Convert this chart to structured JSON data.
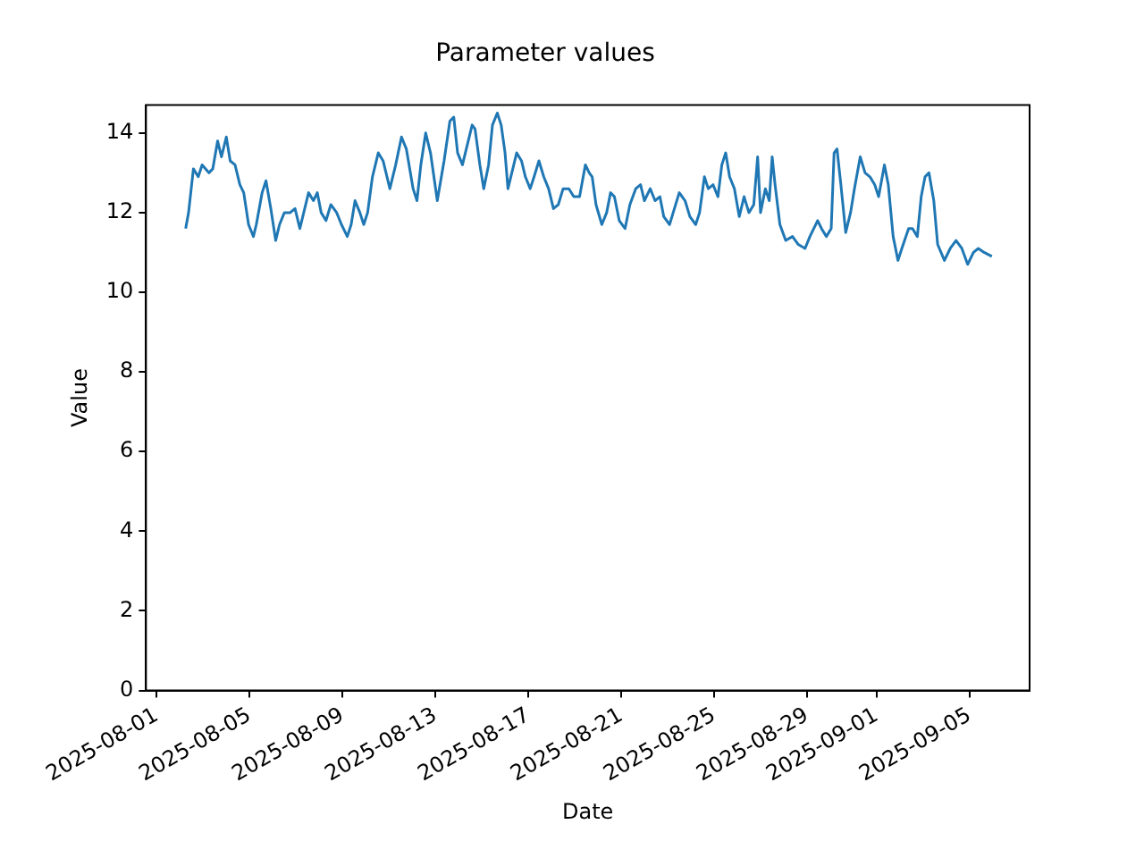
{
  "chart_data": {
    "type": "line",
    "title": "Parameter values",
    "xlabel": "Date",
    "ylabel": "Value",
    "x": [
      "2025-08-02T06:00",
      "2025-08-02T09:00",
      "2025-08-02T14:00",
      "2025-08-02T19:00",
      "2025-08-02T23:00",
      "2025-08-03T06:00",
      "2025-08-03T10:00",
      "2025-08-03T15:00",
      "2025-08-03T19:00",
      "2025-08-04T00:00",
      "2025-08-04T04:00",
      "2025-08-04T09:00",
      "2025-08-04T14:00",
      "2025-08-04T18:00",
      "2025-08-04T23:00",
      "2025-08-05T04:00",
      "2025-08-05T07:00",
      "2025-08-05T13:00",
      "2025-08-05T17:00",
      "2025-08-05T22:00",
      "2025-08-06T03:00",
      "2025-08-06T07:00",
      "2025-08-06T12:00",
      "2025-08-06T18:00",
      "2025-08-06T23:00",
      "2025-08-07T04:00",
      "2025-08-07T08:00",
      "2025-08-07T13:00",
      "2025-08-07T18:00",
      "2025-08-07T22:00",
      "2025-08-08T02:00",
      "2025-08-08T07:00",
      "2025-08-08T12:00",
      "2025-08-08T18:00",
      "2025-08-08T23:00",
      "2025-08-09T05:00",
      "2025-08-09T09:00",
      "2025-08-09T13:00",
      "2025-08-09T18:00",
      "2025-08-09T22:00",
      "2025-08-10T02:00",
      "2025-08-10T07:00",
      "2025-08-10T13:00",
      "2025-08-10T18:00",
      "2025-08-11T01:00",
      "2025-08-11T07:00",
      "2025-08-11T13:00",
      "2025-08-11T18:00",
      "2025-08-12T01:00",
      "2025-08-12T05:00",
      "2025-08-12T09:00",
      "2025-08-12T14:00",
      "2025-08-12T19:00",
      "2025-08-13T02:00",
      "2025-08-13T09:00",
      "2025-08-13T15:00",
      "2025-08-13T19:00",
      "2025-08-13T23:00",
      "2025-08-14T04:00",
      "2025-08-14T09:00",
      "2025-08-14T14:00",
      "2025-08-14T17:00",
      "2025-08-14T22:00",
      "2025-08-15T02:00",
      "2025-08-15T07:00",
      "2025-08-15T11:00",
      "2025-08-15T16:00",
      "2025-08-15T20:00",
      "2025-08-16T00:00",
      "2025-08-16T03:00",
      "2025-08-16T07:00",
      "2025-08-16T12:00",
      "2025-08-16T17:00",
      "2025-08-16T21:00",
      "2025-08-17T02:00",
      "2025-08-17T06:00",
      "2025-08-17T11:00",
      "2025-08-17T16:00",
      "2025-08-17T21:00",
      "2025-08-18T02:00",
      "2025-08-18T07:00",
      "2025-08-18T12:00",
      "2025-08-18T18:00",
      "2025-08-18T23:00",
      "2025-08-19T05:00",
      "2025-08-19T11:00",
      "2025-08-19T15:00",
      "2025-08-19T18:00",
      "2025-08-19T22:00",
      "2025-08-20T04:00",
      "2025-08-20T09:00",
      "2025-08-20T13:00",
      "2025-08-20T17:00",
      "2025-08-20T22:00",
      "2025-08-21T04:00",
      "2025-08-21T09:00",
      "2025-08-21T15:00",
      "2025-08-21T20:00",
      "2025-08-22T00:00",
      "2025-08-22T06:00",
      "2025-08-22T11:00",
      "2025-08-22T16:00",
      "2025-08-22T20:00",
      "2025-08-23T02:00",
      "2025-08-23T07:00",
      "2025-08-23T12:00",
      "2025-08-23T18:00",
      "2025-08-23T23:00",
      "2025-08-24T05:00",
      "2025-08-24T09:00",
      "2025-08-24T14:00",
      "2025-08-24T18:00",
      "2025-08-24T23:00",
      "2025-08-25T04:00",
      "2025-08-25T08:00",
      "2025-08-25T12:00",
      "2025-08-25T16:00",
      "2025-08-25T21:00",
      "2025-08-26T02:00",
      "2025-08-26T07:00",
      "2025-08-26T12:00",
      "2025-08-26T17:00",
      "2025-08-26T21:00",
      "2025-08-27T00:00",
      "2025-08-27T05:00",
      "2025-08-27T09:00",
      "2025-08-27T12:00",
      "2025-08-27T15:00",
      "2025-08-27T20:00",
      "2025-08-28T02:00",
      "2025-08-28T09:00",
      "2025-08-28T15:00",
      "2025-08-28T22:00",
      "2025-08-29T03:00",
      "2025-08-29T11:00",
      "2025-08-29T15:00",
      "2025-08-29T20:00",
      "2025-08-30T01:00",
      "2025-08-30T04:00",
      "2025-08-30T07:00",
      "2025-08-30T11:00",
      "2025-08-30T16:00",
      "2025-08-30T21:00",
      "2025-08-31T01:00",
      "2025-08-31T07:00",
      "2025-08-31T12:00",
      "2025-08-31T17:00",
      "2025-08-31T22:00",
      "2025-09-01T02:00",
      "2025-09-01T08:00",
      "2025-09-01T12:00",
      "2025-09-01T17:00",
      "2025-09-01T22:00",
      "2025-09-02T02:00",
      "2025-09-02T09:00",
      "2025-09-02T13:00",
      "2025-09-02T18:00",
      "2025-09-02T22:00",
      "2025-09-03T02:00",
      "2025-09-03T06:00",
      "2025-09-03T11:00",
      "2025-09-03T15:00",
      "2025-09-03T22:00",
      "2025-09-04T04:00",
      "2025-09-04T10:00",
      "2025-09-04T16:00",
      "2025-09-04T22:00",
      "2025-09-05T04:00",
      "2025-09-05T09:00",
      "2025-09-05T15:00",
      "2025-09-05T23:00"
    ],
    "series": [
      {
        "color": "#1f77b4",
        "values": [
          11.6,
          12.0,
          13.1,
          12.9,
          13.2,
          13.0,
          13.1,
          13.8,
          13.4,
          13.9,
          13.3,
          13.2,
          12.7,
          12.5,
          11.7,
          11.4,
          11.7,
          12.5,
          12.8,
          12.1,
          11.3,
          11.7,
          12.0,
          12.0,
          12.1,
          11.6,
          12.0,
          12.5,
          12.3,
          12.5,
          12.0,
          11.8,
          12.2,
          12.0,
          11.7,
          11.4,
          11.7,
          12.3,
          12.0,
          11.7,
          12.0,
          12.9,
          13.5,
          13.3,
          12.6,
          13.2,
          13.9,
          13.6,
          12.6,
          12.3,
          13.2,
          14.0,
          13.5,
          12.3,
          13.3,
          14.3,
          14.4,
          13.5,
          13.2,
          13.7,
          14.2,
          14.1,
          13.2,
          12.6,
          13.2,
          14.2,
          14.5,
          14.2,
          13.5,
          12.6,
          13.0,
          13.5,
          13.3,
          12.9,
          12.6,
          12.9,
          13.3,
          12.9,
          12.6,
          12.1,
          12.2,
          12.6,
          12.6,
          12.4,
          12.4,
          13.2,
          13.0,
          12.9,
          12.2,
          11.7,
          12.0,
          12.5,
          12.4,
          11.8,
          11.6,
          12.2,
          12.6,
          12.7,
          12.3,
          12.6,
          12.3,
          12.4,
          11.9,
          11.7,
          12.1,
          12.5,
          12.3,
          11.9,
          11.7,
          12.0,
          12.9,
          12.6,
          12.7,
          12.4,
          13.2,
          13.5,
          12.9,
          12.6,
          11.9,
          12.4,
          12.0,
          12.2,
          13.4,
          12.0,
          12.6,
          12.3,
          13.4,
          12.7,
          11.7,
          11.3,
          11.4,
          11.2,
          11.1,
          11.4,
          11.8,
          11.6,
          11.4,
          11.6,
          13.5,
          13.6,
          12.7,
          11.5,
          12.0,
          12.6,
          13.4,
          13.0,
          12.9,
          12.7,
          12.4,
          13.2,
          12.7,
          11.4,
          10.8,
          11.1,
          11.6,
          11.6,
          11.4,
          12.4,
          12.9,
          13.0,
          12.3,
          11.2,
          10.8,
          11.1,
          11.3,
          11.1,
          10.7,
          11.0,
          11.1,
          11.0,
          10.9
        ]
      }
    ],
    "xlim": [
      "2025-07-31T13:00",
      "2025-09-07T14:00"
    ],
    "xticks": [
      "2025-08-01",
      "2025-08-05",
      "2025-08-09",
      "2025-08-13",
      "2025-08-17",
      "2025-08-21",
      "2025-08-25",
      "2025-08-29",
      "2025-09-01",
      "2025-09-05"
    ],
    "ylim": [
      0,
      14.7
    ],
    "yticks": [
      0,
      2,
      4,
      6,
      8,
      10,
      12,
      14
    ],
    "grid": false,
    "legend": false,
    "marker": "none",
    "line_style": "solid"
  }
}
